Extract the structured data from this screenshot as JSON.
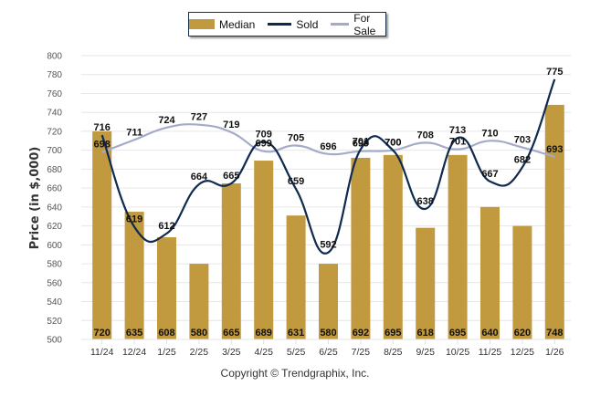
{
  "chart_data": {
    "type": "bar",
    "title": "",
    "xlabel": "",
    "ylabel": "Price (in $,000)",
    "ylim": [
      500,
      800
    ],
    "ytick_step": 20,
    "grid": true,
    "legend_position": "top-center",
    "categories": [
      "11/24",
      "12/24",
      "1/25",
      "2/25",
      "3/25",
      "4/25",
      "5/25",
      "6/25",
      "7/25",
      "8/25",
      "9/25",
      "10/25",
      "11/25",
      "12/25",
      "1/26"
    ],
    "series": [
      {
        "name": "Median",
        "type": "bar",
        "color": "#c19a3f",
        "values": [
          720,
          635,
          608,
          580,
          665,
          689,
          631,
          580,
          692,
          695,
          618,
          695,
          640,
          620,
          748
        ]
      },
      {
        "name": "Sold",
        "type": "line",
        "color": "#0f2a4f",
        "values": [
          716,
          619,
          612,
          664,
          665,
          709,
          659,
          592,
          701,
          700,
          638,
          713,
          667,
          682,
          775
        ]
      },
      {
        "name": "For Sale",
        "type": "line",
        "color": "#a3abc8",
        "values": [
          698,
          711,
          724,
          727,
          719,
          699,
          705,
          696,
          699,
          700,
          708,
          701,
          710,
          703,
          693
        ]
      }
    ]
  },
  "legend": {
    "items": [
      {
        "label": "Median"
      },
      {
        "label": "Sold"
      },
      {
        "label": "For Sale"
      }
    ]
  },
  "footer": {
    "copyright": "Copyright © Trendgraphix, Inc."
  }
}
